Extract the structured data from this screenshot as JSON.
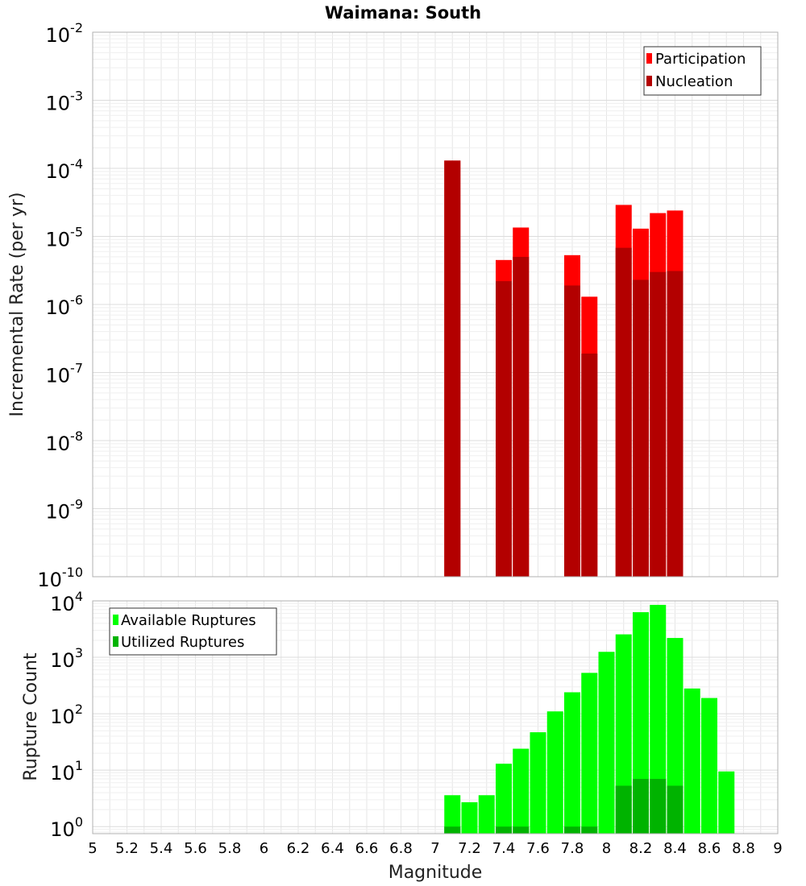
{
  "chart_data": [
    {
      "type": "bar",
      "title": "Waimana: South",
      "ylabel": "Incremental Rate (per yr)",
      "xlabel": "",
      "yscale": "log",
      "ylim": [
        1e-10,
        0.01
      ],
      "xlim": [
        5,
        9
      ],
      "y_tick_labels": [
        {
          "base": "10",
          "exp": "-10"
        },
        {
          "base": "10",
          "exp": "-9"
        },
        {
          "base": "10",
          "exp": "-8"
        },
        {
          "base": "10",
          "exp": "-7"
        },
        {
          "base": "10",
          "exp": "-6"
        },
        {
          "base": "10",
          "exp": "-5"
        },
        {
          "base": "10",
          "exp": "-4"
        },
        {
          "base": "10",
          "exp": "-3"
        },
        {
          "base": "10",
          "exp": "-2"
        }
      ],
      "grid": true,
      "legend_position": "top-right",
      "legend": [
        "Participation",
        "Nucleation"
      ],
      "x": [
        7.1,
        7.4,
        7.5,
        7.8,
        7.9,
        8.1,
        8.2,
        8.3,
        8.4
      ],
      "series": [
        {
          "name": "Participation",
          "color": "#ff0000",
          "values": [
            0.00013,
            4.5e-06,
            1.35e-05,
            5.3e-06,
            1.3e-06,
            2.9e-05,
            1.3e-05,
            2.2e-05,
            2.4e-05
          ]
        },
        {
          "name": "Nucleation",
          "color": "#b30000",
          "values": [
            0.00013,
            2.2e-06,
            5e-06,
            1.9e-06,
            1.9e-07,
            6.8e-06,
            2.3e-06,
            3e-06,
            3.1e-06
          ]
        }
      ]
    },
    {
      "type": "bar",
      "title": "",
      "ylabel": "Rupture Count",
      "xlabel": "Magnitude",
      "yscale": "log",
      "ylim": [
        0.75,
        10000
      ],
      "xlim": [
        5,
        9
      ],
      "y_tick_labels": [
        {
          "base": "10",
          "exp": "0"
        },
        {
          "base": "10",
          "exp": "1"
        },
        {
          "base": "10",
          "exp": "2"
        },
        {
          "base": "10",
          "exp": "3"
        },
        {
          "base": "10",
          "exp": "4"
        }
      ],
      "x_tick_labels": [
        "5",
        "5.2",
        "5.4",
        "5.6",
        "5.8",
        "6",
        "6.2",
        "6.4",
        "6.6",
        "6.8",
        "7",
        "7.2",
        "7.4",
        "7.6",
        "7.8",
        "8",
        "8.2",
        "8.4",
        "8.6",
        "8.8",
        "9"
      ],
      "grid": true,
      "legend_position": "top-left",
      "legend": [
        "Available Ruptures",
        "Utilized Ruptures"
      ],
      "x": [
        7.1,
        7.2,
        7.3,
        7.4,
        7.5,
        7.6,
        7.7,
        7.8,
        7.9,
        8.0,
        8.1,
        8.2,
        8.3,
        8.4,
        8.5,
        8.6,
        8.7
      ],
      "series": [
        {
          "name": "Available Ruptures",
          "color": "#00ff00",
          "values": [
            3.6,
            2.7,
            3.6,
            13,
            24,
            47,
            110,
            240,
            530,
            1250,
            2550,
            6300,
            8500,
            2200,
            280,
            190,
            9.5
          ]
        },
        {
          "name": "Utilized Ruptures",
          "color": "#00b300",
          "values": [
            1,
            0,
            0,
            1,
            1,
            0,
            0,
            1,
            1,
            0,
            5.3,
            7,
            7,
            5.3,
            0,
            0,
            0
          ]
        }
      ]
    }
  ]
}
